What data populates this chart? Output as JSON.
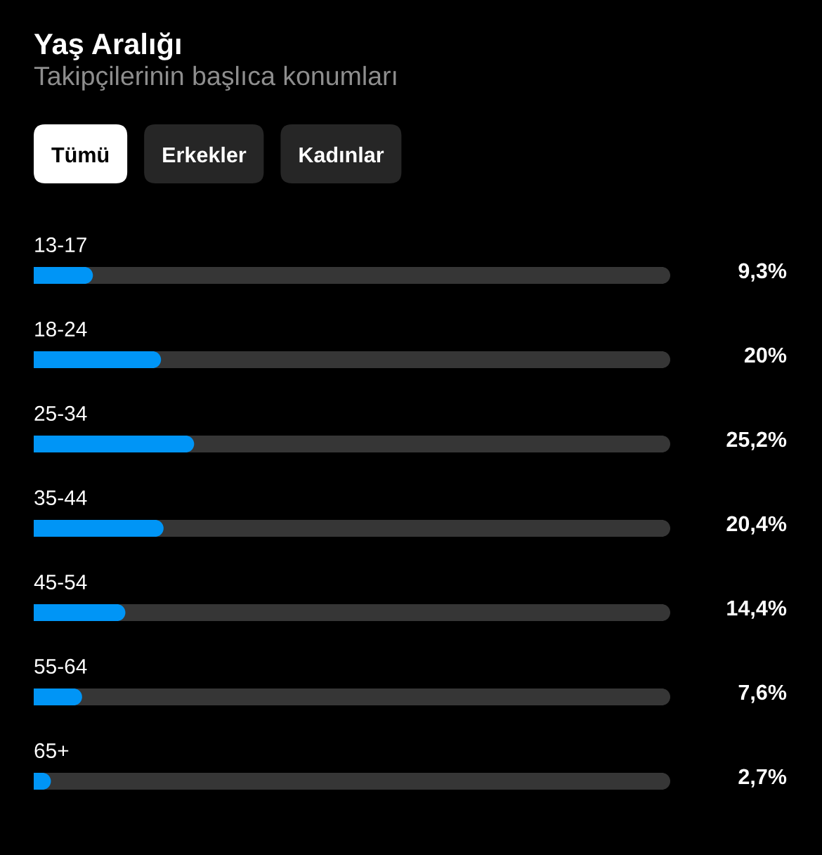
{
  "chart_data": {
    "type": "bar",
    "orientation": "horizontal",
    "title": "Yaş Aralığı",
    "subtitle": "Takipçilerinin başlıca konumları",
    "annotations": [
      "Tümü",
      "Erkekler",
      "Kadınlar"
    ],
    "categories": [
      "13-17",
      "18-24",
      "25-34",
      "35-44",
      "45-54",
      "55-64",
      "65+"
    ],
    "series": [
      {
        "color": "#0095f6",
        "values": [
          9.3,
          20,
          25.2,
          20.4,
          14.4,
          7.6,
          2.7
        ],
        "value_labels": [
          "9,3%",
          "20%",
          "25,2%",
          "20,4%",
          "14,4%",
          "7,6%",
          "2,7%"
        ]
      }
    ],
    "xlim": [
      0,
      100
    ],
    "tick_labels": "y"
  }
}
